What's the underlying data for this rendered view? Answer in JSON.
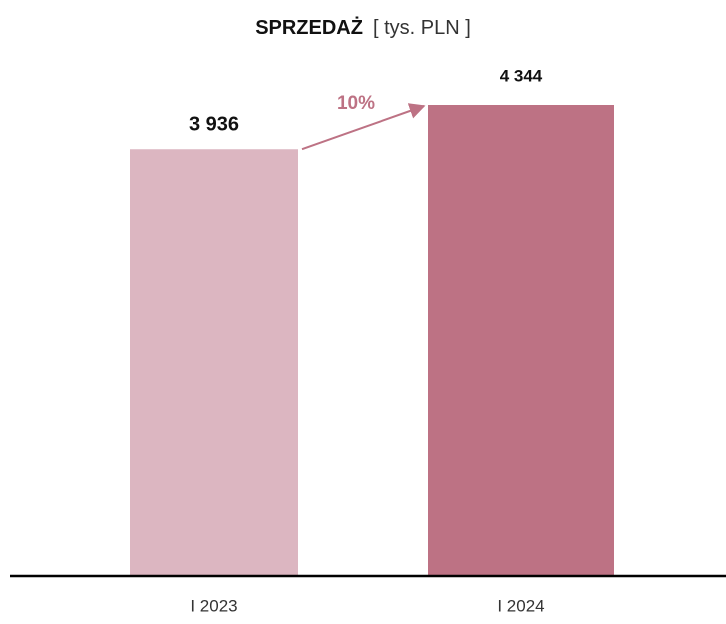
{
  "chart_data": {
    "type": "bar",
    "title": "SPRZEDAŻ",
    "subtitle": "[ tys. PLN ]",
    "categories": [
      "I 2023",
      "I 2024"
    ],
    "values": [
      3936,
      4344
    ],
    "value_labels": [
      "3 936",
      "4 344"
    ],
    "colors": [
      "#dcb6c1",
      "#bd7284"
    ],
    "annotation": "10%"
  }
}
